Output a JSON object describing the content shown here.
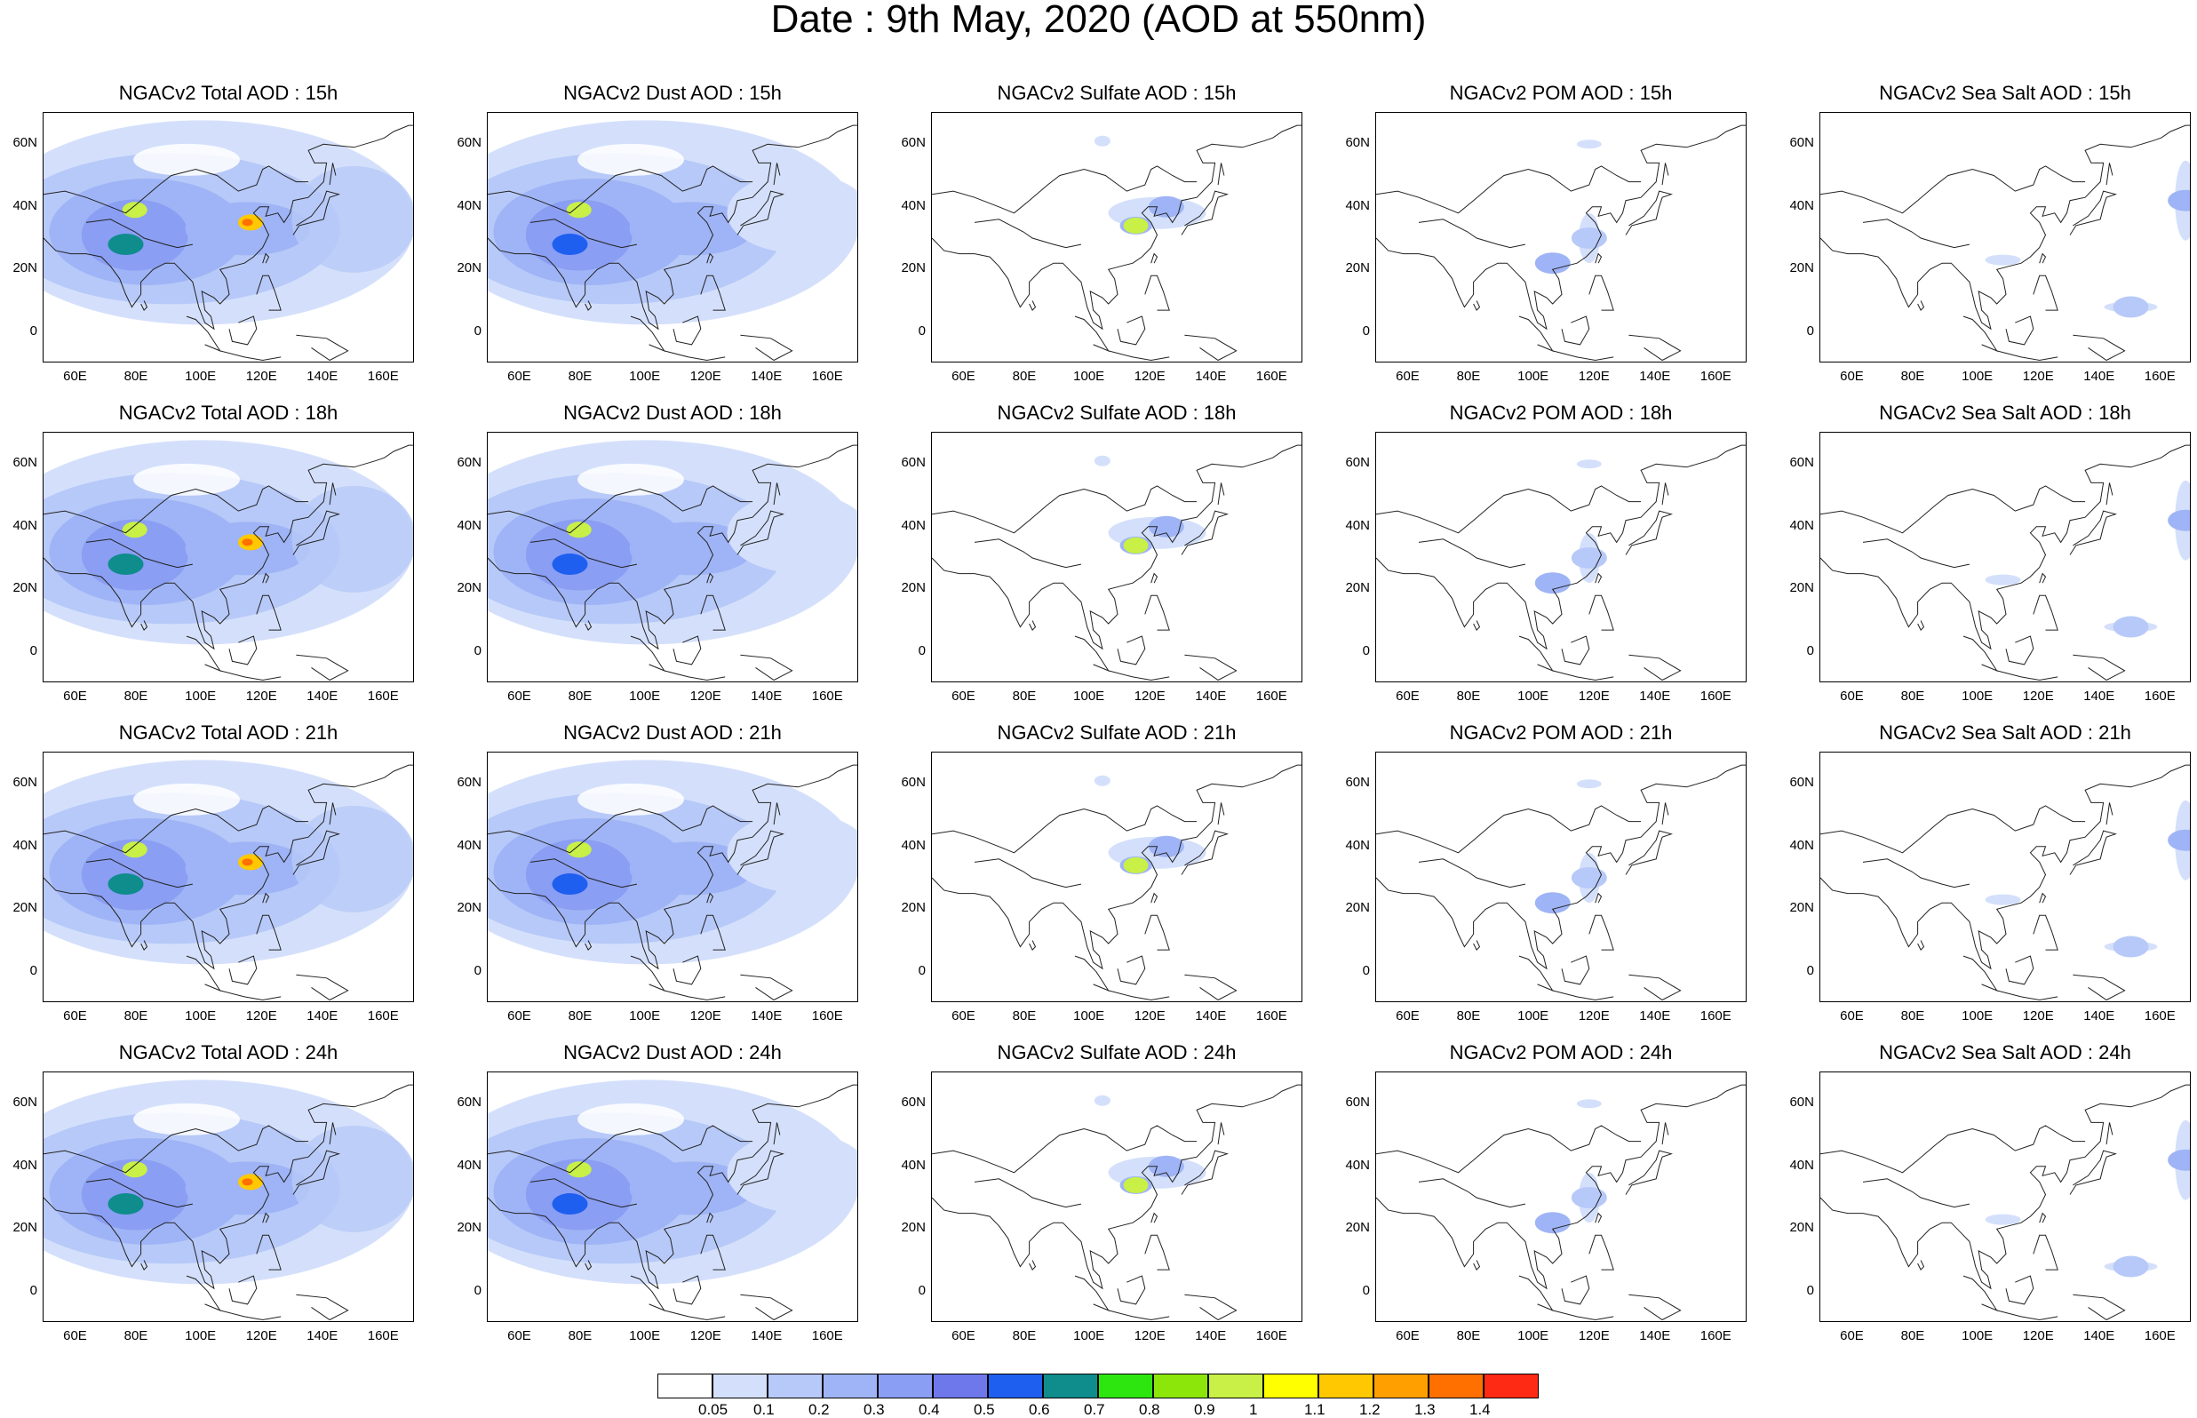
{
  "title": "Date : 9th May, 2020 (AOD at 550nm)",
  "chart_data": {
    "type": "map-panel-grid",
    "extent": {
      "lon": [
        48,
        170
      ],
      "lat": [
        -10,
        70
      ]
    },
    "lon_ticks": [
      "60E",
      "80E",
      "100E",
      "120E",
      "140E",
      "160E"
    ],
    "lat_ticks": [
      "60N",
      "40N",
      "20N",
      "0"
    ],
    "lon_tick_values": [
      60,
      80,
      100,
      120,
      140,
      160
    ],
    "lat_tick_values": [
      60,
      40,
      20,
      0
    ],
    "species": [
      "Total",
      "Dust",
      "Sulfate",
      "POM",
      "SeaSalt"
    ],
    "rows": [
      {
        "hour": "15h",
        "titles": [
          "NGACv2 Total AOD : 15h",
          "NGACv2 Dust AOD : 15h",
          "NGACv2 Sulfate AOD : 15h",
          "NGACv2 POM AOD : 15h",
          "NGACv2 Sea Salt AOD : 15h"
        ]
      },
      {
        "hour": "18h",
        "titles": [
          "NGACv2 Total AOD : 18h",
          "NGACv2 Dust AOD : 18h",
          "NGACv2 Sulfate AOD : 18h",
          "NGACv2 POM AOD : 18h",
          "NGACv2 Sea Salt AOD : 18h"
        ]
      },
      {
        "hour": "21h",
        "titles": [
          "NGACv2 Total AOD : 21h",
          "NGACv2 Dust AOD : 21h",
          "NGACv2 Sulfate AOD : 21h",
          "NGACv2 POM AOD : 21h",
          "NGACv2 Sea Salt AOD : 21h"
        ]
      },
      {
        "hour": "24h",
        "titles": [
          "NGACv2 Total AOD : 24h",
          "NGACv2 Dust AOD : 24h",
          "NGACv2 Sulfate AOD : 24h",
          "NGACv2 POM AOD : 24h",
          "NGACv2 Sea Salt  AOD : 24h"
        ]
      }
    ],
    "colorbar": {
      "labels": [
        "0.05",
        "0.1",
        "0.2",
        "0.3",
        "0.4",
        "0.5",
        "0.6",
        "0.7",
        "0.8",
        "0.9",
        "1",
        "1.1",
        "1.2",
        "1.3",
        "1.4"
      ],
      "colors": [
        "#ffffff",
        "#d4e0fb",
        "#b7c9f8",
        "#9fb4f6",
        "#8a9ef3",
        "#6e78ea",
        "#1e5ff0",
        "#0f8c8c",
        "#2ee60f",
        "#8ce60a",
        "#c8f046",
        "#ffff00",
        "#ffc800",
        "#ffa000",
        "#ff7000",
        "#ff2a14"
      ]
    },
    "features": [
      {
        "species": "Total",
        "lon": 78,
        "lat": 39,
        "aod": 0.9
      },
      {
        "species": "Total",
        "lon": 116,
        "lat": 35,
        "aod": 1.1
      },
      {
        "species": "Total",
        "lon": 75,
        "lat": 28,
        "aod": 0.6
      },
      {
        "species": "Dust",
        "lon": 78,
        "lat": 39,
        "aod": 0.9
      },
      {
        "species": "Dust",
        "lon": 75,
        "lat": 28,
        "aod": 0.5
      },
      {
        "species": "Sulfate",
        "lon": 115,
        "lat": 34,
        "aod": 0.9
      },
      {
        "species": "Sulfate",
        "lon": 125,
        "lat": 40,
        "aod": 0.2
      },
      {
        "species": "POM",
        "lon": 106,
        "lat": 22,
        "aod": 0.2
      },
      {
        "species": "POM",
        "lon": 118,
        "lat": 30,
        "aod": 0.1
      },
      {
        "species": "SeaSalt",
        "lon": 168,
        "lat": 42,
        "aod": 0.2
      },
      {
        "species": "SeaSalt",
        "lon": 150,
        "lat": 8,
        "aod": 0.1
      }
    ]
  }
}
